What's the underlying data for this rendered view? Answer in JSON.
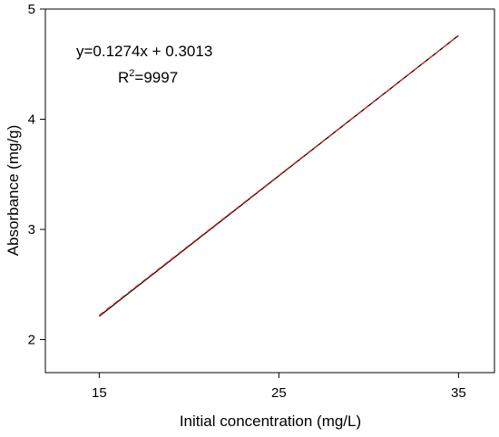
{
  "chart_data": {
    "type": "line",
    "title": "",
    "xlabel": "Initial concentration (mg/L)",
    "ylabel": "Absorbance (mg/g)",
    "xlim": [
      12,
      37
    ],
    "ylim": [
      1.7,
      5
    ],
    "x_ticks": [
      15,
      25,
      35
    ],
    "y_ticks": [
      2,
      3,
      4,
      5
    ],
    "grid": false,
    "legend": "none",
    "annotations": {
      "equation": "y=0.1274x + 0.3013",
      "r2_prefix": "R",
      "r2_superscript": "2",
      "r2_value": "=9997"
    },
    "series": [
      {
        "style": "solid",
        "color": "#000000",
        "x": [
          15,
          35
        ],
        "y": [
          2.2123,
          4.7603
        ]
      },
      {
        "style": "dashed",
        "color": "#e8201c",
        "x": [
          15,
          35
        ],
        "y": [
          2.22,
          4.76
        ]
      }
    ]
  }
}
